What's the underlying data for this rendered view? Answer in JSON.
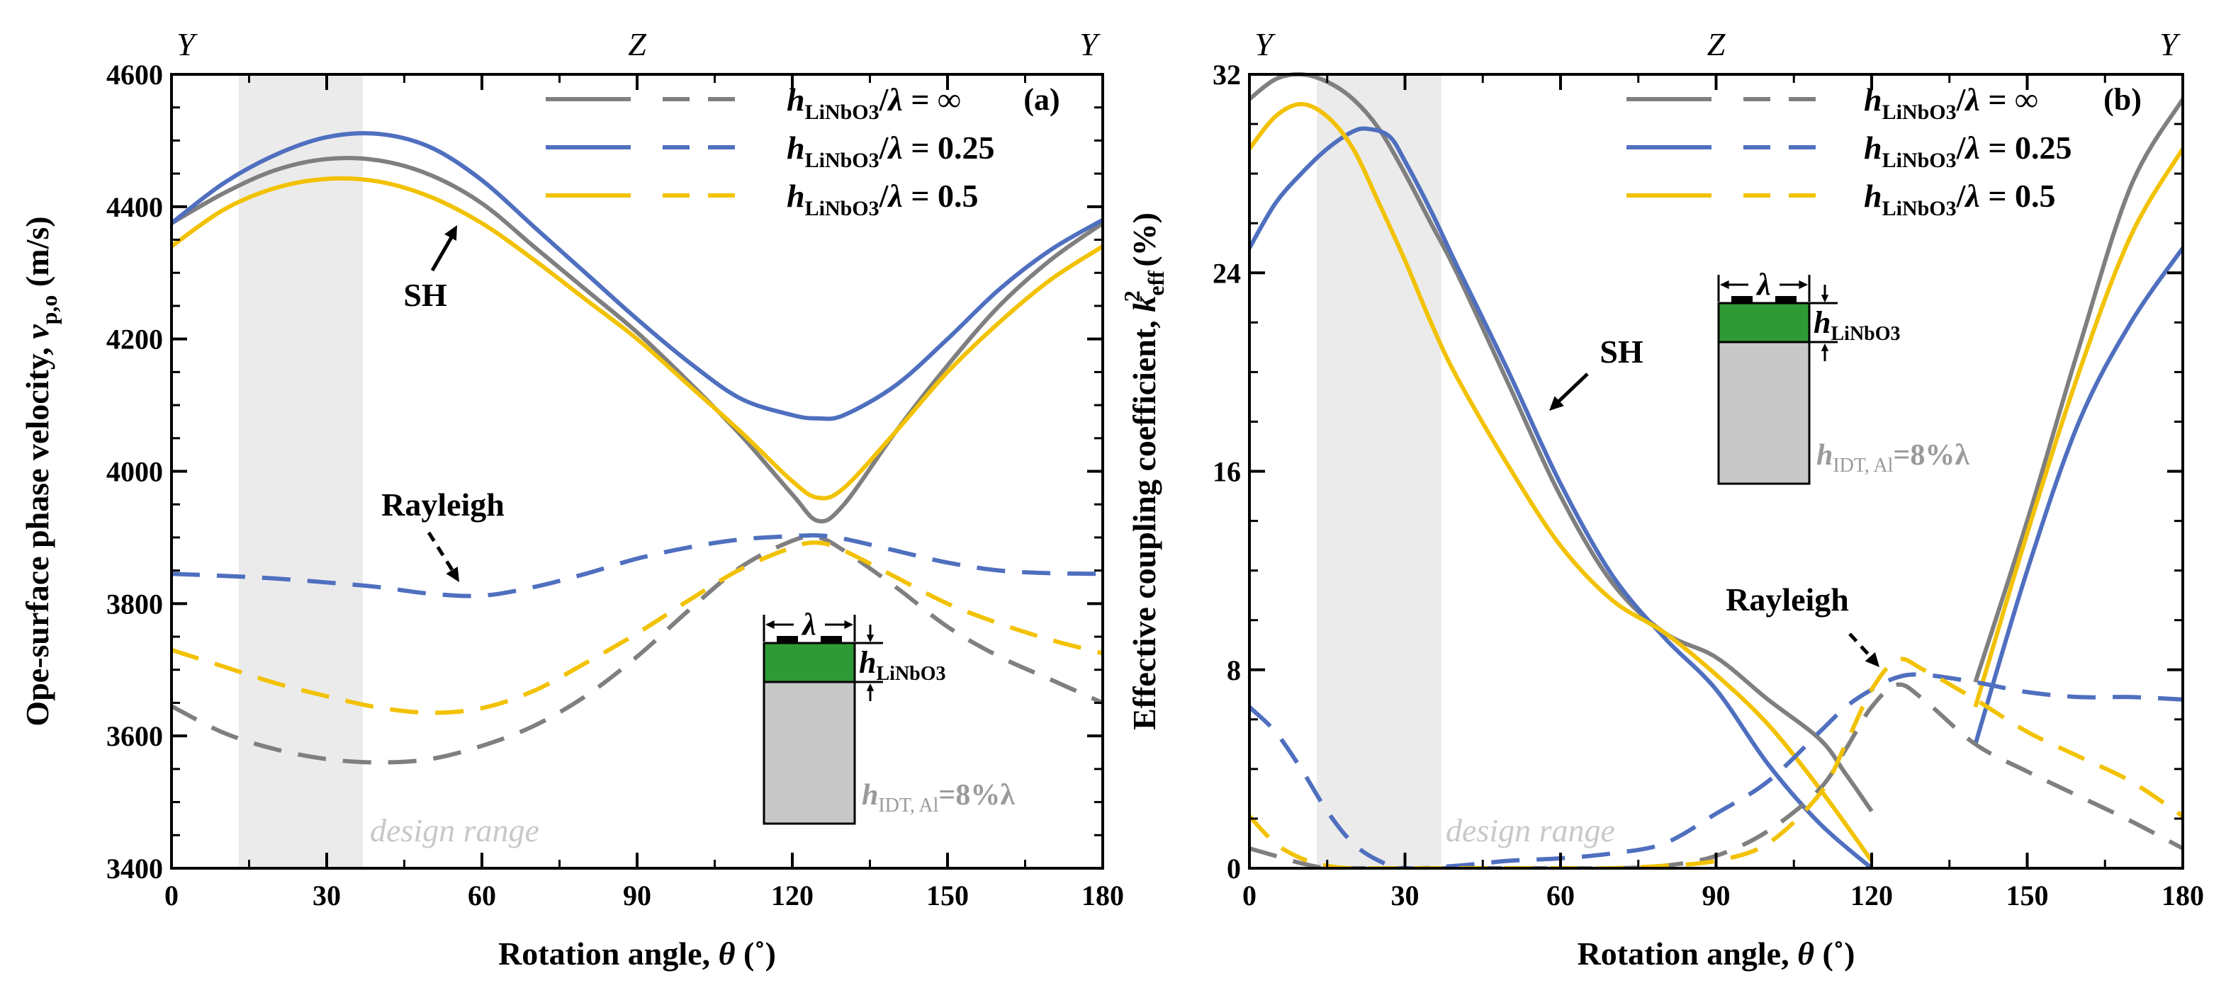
{
  "colors": {
    "gray": "#7f7f7f",
    "blue": "#4f6fbf",
    "yellow": "#f2c200",
    "green": "#2e9a35",
    "substrate": "#c8c8c8",
    "design_band": "#ebebeb"
  },
  "legend": [
    {
      "ratio": "∞",
      "color_key": "gray"
    },
    {
      "ratio": "0.25",
      "color_key": "blue"
    },
    {
      "ratio": "0.5",
      "color_key": "yellow"
    }
  ],
  "legend_prefix": "h",
  "legend_sub": "LiNbO3",
  "legend_mid": "/λ = ",
  "orientation_labels": [
    "Y",
    "Z",
    "Y"
  ],
  "design_range_label": "design range",
  "inset": {
    "lambda": "λ",
    "h_label": "h",
    "h_sub": "LiNbO3",
    "hidt_h": "h",
    "hidt_sub": "IDT, Al",
    "hidt_val": "=8%λ"
  },
  "xlabel_main": "Rotation angle, ",
  "xlabel_theta": "θ",
  "xlabel_unit": " (˚)",
  "chart_data": [
    {
      "type": "line",
      "panel_label": "(a)",
      "ylabel": "Ope-surface phase velocity, v_p,o (m/s)",
      "ylabel_main": "Ope-surface phase velocity, ",
      "ylabel_v": "v",
      "ylabel_sub": "p,o",
      "ylabel_unit": " (m/s)",
      "xlim": [
        0,
        180
      ],
      "ylim": [
        3400,
        4600
      ],
      "xticks": [
        0,
        30,
        60,
        90,
        120,
        150,
        180
      ],
      "yticks": [
        3400,
        3600,
        3800,
        4000,
        4200,
        4400,
        4600
      ],
      "design_range": [
        13,
        37
      ],
      "annotations": {
        "sh": "SH",
        "rayleigh": "Rayleigh"
      },
      "series": [
        {
          "mode": "SH",
          "ratio": "∞",
          "color_key": "gray",
          "style": "solid",
          "x": [
            0,
            10,
            20,
            30,
            40,
            50,
            60,
            70,
            80,
            90,
            100,
            110,
            120,
            125,
            130,
            140,
            150,
            160,
            170,
            180
          ],
          "y": [
            4375,
            4420,
            4455,
            4472,
            4470,
            4448,
            4405,
            4340,
            4275,
            4210,
            4135,
            4055,
            3965,
            3925,
            3950,
            4060,
            4160,
            4250,
            4320,
            4375
          ]
        },
        {
          "mode": "SH",
          "ratio": "0.25",
          "color_key": "blue",
          "style": "solid",
          "x": [
            0,
            10,
            20,
            30,
            40,
            50,
            60,
            70,
            80,
            90,
            100,
            110,
            120,
            125,
            130,
            140,
            150,
            160,
            170,
            180
          ],
          "y": [
            4375,
            4435,
            4478,
            4505,
            4510,
            4490,
            4440,
            4370,
            4300,
            4230,
            4165,
            4110,
            4085,
            4080,
            4085,
            4130,
            4200,
            4275,
            4335,
            4380
          ]
        },
        {
          "mode": "SH",
          "ratio": "0.5",
          "color_key": "yellow",
          "style": "solid",
          "x": [
            0,
            10,
            20,
            30,
            40,
            50,
            60,
            70,
            80,
            90,
            100,
            110,
            120,
            125,
            130,
            140,
            150,
            160,
            170,
            180
          ],
          "y": [
            4340,
            4395,
            4428,
            4442,
            4438,
            4415,
            4375,
            4320,
            4260,
            4200,
            4130,
            4060,
            3985,
            3960,
            3975,
            4060,
            4150,
            4225,
            4290,
            4340
          ]
        },
        {
          "mode": "Rayleigh",
          "ratio": "∞",
          "color_key": "gray",
          "style": "dashed",
          "x": [
            0,
            10,
            20,
            30,
            40,
            50,
            60,
            70,
            80,
            90,
            100,
            110,
            120,
            125,
            130,
            140,
            150,
            160,
            170,
            180
          ],
          "y": [
            3645,
            3605,
            3580,
            3565,
            3560,
            3565,
            3585,
            3615,
            3660,
            3720,
            3790,
            3855,
            3895,
            3900,
            3880,
            3825,
            3765,
            3720,
            3685,
            3650
          ]
        },
        {
          "mode": "Rayleigh",
          "ratio": "0.25",
          "color_key": "blue",
          "style": "dashed",
          "x": [
            0,
            10,
            20,
            30,
            40,
            50,
            60,
            70,
            80,
            90,
            100,
            110,
            120,
            125,
            130,
            140,
            150,
            160,
            170,
            180
          ],
          "y": [
            3845,
            3842,
            3838,
            3832,
            3825,
            3815,
            3812,
            3825,
            3845,
            3868,
            3885,
            3897,
            3902,
            3903,
            3898,
            3880,
            3862,
            3850,
            3846,
            3845
          ]
        },
        {
          "mode": "Rayleigh",
          "ratio": "0.5",
          "color_key": "yellow",
          "style": "dashed",
          "x": [
            0,
            10,
            20,
            30,
            40,
            50,
            60,
            70,
            80,
            90,
            100,
            110,
            120,
            125,
            130,
            140,
            150,
            160,
            170,
            180
          ],
          "y": [
            3730,
            3705,
            3680,
            3660,
            3643,
            3635,
            3642,
            3668,
            3710,
            3755,
            3805,
            3852,
            3885,
            3892,
            3880,
            3840,
            3800,
            3770,
            3745,
            3725
          ]
        }
      ]
    },
    {
      "type": "line",
      "panel_label": "(b)",
      "ylabel": "Effective coupling coefficient, k_eff^2 (%)",
      "ylabel_main": "Effective coupling coefficient, ",
      "ylabel_k": "k",
      "ylabel_sub": "eff",
      "ylabel_sup": "2",
      "ylabel_unit": " (%)",
      "xlim": [
        0,
        180
      ],
      "ylim": [
        0,
        32
      ],
      "xticks": [
        0,
        30,
        60,
        90,
        120,
        150,
        180
      ],
      "yticks": [
        0,
        8,
        16,
        24,
        32
      ],
      "design_range": [
        13,
        37
      ],
      "annotations": {
        "sh": "SH",
        "rayleigh": "Rayleigh"
      },
      "series": [
        {
          "mode": "SH",
          "ratio": "∞",
          "color_key": "gray",
          "style": "solid",
          "segment": 1,
          "x": [
            0,
            5,
            10,
            15,
            20,
            25,
            30,
            35,
            40,
            50,
            60,
            70,
            80,
            90,
            100,
            110,
            115,
            120
          ],
          "y": [
            31,
            31.8,
            32,
            31.7,
            31,
            29.8,
            28,
            26,
            24,
            19.5,
            15,
            11.5,
            9.5,
            8.5,
            6.8,
            5.2,
            3.8,
            2.3
          ]
        },
        {
          "mode": "SH",
          "ratio": "∞",
          "color_key": "gray",
          "style": "solid",
          "segment": 2,
          "x": [
            140,
            150,
            160,
            170,
            180
          ],
          "y": [
            7.5,
            14,
            21,
            27.5,
            31
          ]
        },
        {
          "mode": "SH",
          "ratio": "0.25",
          "color_key": "blue",
          "style": "solid",
          "segment": 1,
          "x": [
            0,
            5,
            10,
            15,
            20,
            23,
            27,
            30,
            35,
            40,
            50,
            60,
            70,
            80,
            90,
            100,
            110,
            120
          ],
          "y": [
            25,
            26.8,
            28,
            29,
            29.7,
            29.8,
            29.5,
            28.5,
            26.5,
            24.3,
            20,
            15.5,
            11.8,
            9.3,
            7.2,
            4.2,
            1.8,
            0
          ]
        },
        {
          "mode": "SH",
          "ratio": "0.25",
          "color_key": "blue",
          "style": "solid",
          "segment": 2,
          "x": [
            140,
            150,
            160,
            170,
            180
          ],
          "y": [
            5,
            12,
            18,
            22,
            25
          ]
        },
        {
          "mode": "SH",
          "ratio": "0.5",
          "color_key": "yellow",
          "style": "solid",
          "segment": 1,
          "x": [
            0,
            5,
            10,
            15,
            20,
            25,
            30,
            35,
            40,
            50,
            60,
            70,
            80,
            90,
            100,
            110,
            120
          ],
          "y": [
            29,
            30.3,
            30.8,
            30.3,
            29,
            26.8,
            24.5,
            22,
            19.8,
            16.2,
            13,
            10.8,
            9.5,
            7.8,
            5.8,
            3.2,
            0.3
          ]
        },
        {
          "mode": "SH",
          "ratio": "0.5",
          "color_key": "yellow",
          "style": "solid",
          "segment": 2,
          "x": [
            140,
            150,
            160,
            170,
            180
          ],
          "y": [
            6.5,
            13.5,
            20,
            25.5,
            29
          ]
        },
        {
          "mode": "Rayleigh",
          "ratio": "∞",
          "color_key": "gray",
          "style": "dashed",
          "x": [
            0,
            5,
            10,
            15,
            20,
            30,
            40,
            50,
            60,
            70,
            80,
            90,
            100,
            110,
            115,
            120,
            125,
            130,
            140,
            150,
            160,
            170,
            180
          ],
          "y": [
            0.8,
            0.5,
            0.2,
            0,
            0,
            0,
            0,
            0,
            0,
            0,
            0.1,
            0.5,
            1.5,
            3.2,
            4.8,
            6.5,
            7.4,
            6.8,
            5,
            3.9,
            2.9,
            1.9,
            0.8
          ]
        },
        {
          "mode": "Rayleigh",
          "ratio": "0.25",
          "color_key": "blue",
          "style": "dashed",
          "x": [
            0,
            5,
            10,
            15,
            20,
            25,
            30,
            40,
            50,
            60,
            70,
            80,
            90,
            100,
            110,
            115,
            120,
            125,
            130,
            140,
            150,
            160,
            170,
            180
          ],
          "y": [
            6.5,
            5.5,
            4,
            2.3,
            1,
            0.3,
            0,
            0.1,
            0.3,
            0.4,
            0.6,
            1,
            2.2,
            3.5,
            5.5,
            6.5,
            7.2,
            7.7,
            7.8,
            7.5,
            7.1,
            6.9,
            6.9,
            6.8
          ]
        },
        {
          "mode": "Rayleigh",
          "ratio": "0.5",
          "color_key": "yellow",
          "style": "dashed",
          "x": [
            0,
            5,
            10,
            15,
            20,
            30,
            40,
            50,
            60,
            70,
            80,
            90,
            100,
            110,
            115,
            120,
            125,
            130,
            140,
            150,
            160,
            170,
            180
          ],
          "y": [
            2.1,
            1,
            0.4,
            0.1,
            0,
            0,
            0,
            0,
            0,
            0,
            0.1,
            0.3,
            1,
            3,
            5,
            7.2,
            8.4,
            8,
            6.8,
            5.5,
            4.5,
            3.5,
            2.1
          ]
        }
      ]
    }
  ]
}
